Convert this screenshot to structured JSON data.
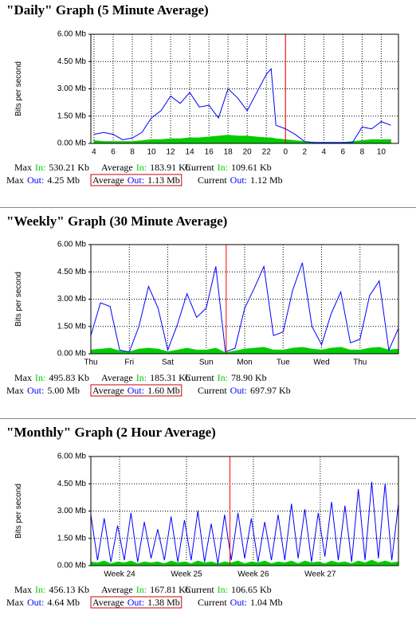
{
  "chart_data": [
    {
      "type": "line",
      "title": "\"Daily\" Graph (5 Minute Average)",
      "y_label": "Bits per second",
      "ylim": [
        0,
        6
      ],
      "yticks": [
        {
          "value": 0,
          "label": "0.00 Mb"
        },
        {
          "value": 1.5,
          "label": "1.50 Mb"
        },
        {
          "value": 3,
          "label": "3.00 Mb"
        },
        {
          "value": 4.5,
          "label": "4.50 Mb"
        },
        {
          "value": 6,
          "label": "6.00 Mb"
        }
      ],
      "xlim": [
        3.67,
        35.8
      ],
      "xticks": [
        4,
        6,
        8,
        10,
        12,
        14,
        16,
        18,
        20,
        22,
        {
          "value": 24,
          "label": "0"
        },
        {
          "value": 26,
          "label": "2"
        },
        {
          "value": 28,
          "label": "4"
        },
        {
          "value": 30,
          "label": "6"
        },
        {
          "value": 32,
          "label": "8"
        },
        {
          "value": 34,
          "label": "10"
        }
      ],
      "grid": true,
      "marker_x": 24,
      "marker_color": "#ff0000",
      "x": [
        4,
        5,
        6,
        7,
        8,
        9,
        10,
        11,
        12,
        13,
        14,
        15,
        16,
        17,
        18,
        19,
        20,
        21,
        22,
        22.5,
        23,
        24,
        25,
        26,
        27,
        28,
        29,
        30,
        31,
        32,
        33,
        34,
        35
      ],
      "series": [
        {
          "color": "#00cc00",
          "fill": true,
          "values": [
            0.15,
            0.1,
            0.1,
            0.1,
            0.1,
            0.15,
            0.2,
            0.2,
            0.25,
            0.25,
            0.3,
            0.3,
            0.35,
            0.4,
            0.45,
            0.4,
            0.4,
            0.35,
            0.3,
            0.3,
            0.25,
            0.2,
            0.15,
            0.1,
            0.05,
            0.05,
            0.05,
            0.05,
            0.1,
            0.15,
            0.2,
            0.2,
            0.2
          ]
        },
        {
          "color": "#0000ff",
          "fill": false,
          "values": [
            0.5,
            0.6,
            0.5,
            0.2,
            0.3,
            0.6,
            1.4,
            1.8,
            2.6,
            2.2,
            2.8,
            2.0,
            2.1,
            1.4,
            3.0,
            2.5,
            1.8,
            2.8,
            3.8,
            4.1,
            1.0,
            0.8,
            0.5,
            0.1,
            0.05,
            0.05,
            0.05,
            0.05,
            0.05,
            0.9,
            0.8,
            1.2,
            1.0
          ]
        }
      ]
    },
    {
      "type": "line",
      "title": "\"Weekly\" Graph (30 Minute Average)",
      "y_label": "Bits per second",
      "ylim": [
        0,
        6
      ],
      "yticks": [
        {
          "value": 0,
          "label": "0.00 Mb"
        },
        {
          "value": 1.5,
          "label": "1.50 Mb"
        },
        {
          "value": 3,
          "label": "3.00 Mb"
        },
        {
          "value": 4.5,
          "label": "4.50 Mb"
        },
        {
          "value": 6,
          "label": "6.00 Mb"
        }
      ],
      "xlim": [
        0,
        8
      ],
      "xticks": [
        {
          "value": 0,
          "label": "Thu"
        },
        {
          "value": 1,
          "label": "Fri"
        },
        {
          "value": 2,
          "label": "Sat"
        },
        {
          "value": 3,
          "label": "Sun"
        },
        {
          "value": 4,
          "label": "Mon"
        },
        {
          "value": 5,
          "label": "Tue"
        },
        {
          "value": 6,
          "label": "Wed"
        },
        {
          "value": 7,
          "label": "Thu"
        }
      ],
      "grid": true,
      "marker_x": 3.52,
      "marker_color": "#ff0000",
      "x": [
        0,
        0.25,
        0.5,
        0.75,
        1,
        1.25,
        1.5,
        1.75,
        2,
        2.25,
        2.5,
        2.75,
        3,
        3.25,
        3.5,
        3.75,
        4,
        4.25,
        4.5,
        4.75,
        5,
        5.25,
        5.5,
        5.75,
        6,
        6.25,
        6.5,
        6.75,
        7,
        7.25,
        7.5,
        7.75,
        8
      ],
      "series": [
        {
          "color": "#00cc00",
          "fill": true,
          "values": [
            0.2,
            0.25,
            0.3,
            0.15,
            0.1,
            0.25,
            0.3,
            0.25,
            0.1,
            0.2,
            0.3,
            0.2,
            0.2,
            0.3,
            0.05,
            0.15,
            0.25,
            0.3,
            0.35,
            0.2,
            0.2,
            0.3,
            0.35,
            0.25,
            0.2,
            0.3,
            0.35,
            0.2,
            0.2,
            0.3,
            0.35,
            0.2,
            0.25
          ]
        },
        {
          "color": "#0000ff",
          "fill": false,
          "values": [
            1.0,
            2.8,
            2.6,
            0.2,
            0.1,
            1.5,
            3.7,
            2.5,
            0.2,
            1.6,
            3.3,
            2.0,
            2.5,
            4.8,
            0.1,
            0.3,
            2.5,
            3.6,
            4.8,
            1.0,
            1.2,
            3.5,
            5.0,
            1.5,
            0.5,
            2.2,
            3.4,
            0.6,
            0.8,
            3.2,
            4.0,
            0.2,
            1.4
          ]
        }
      ]
    },
    {
      "type": "line",
      "title": "\"Monthly\" Graph (2 Hour Average)",
      "y_label": "Bits per second",
      "ylim": [
        0,
        6
      ],
      "yticks": [
        {
          "value": 0,
          "label": "0.00 Mb"
        },
        {
          "value": 1.5,
          "label": "1.50 Mb"
        },
        {
          "value": 3,
          "label": "3.00 Mb"
        },
        {
          "value": 4.5,
          "label": "4.50 Mb"
        },
        {
          "value": 6,
          "label": "6.00 Mb"
        }
      ],
      "xlim": [
        23.3,
        27.9
      ],
      "xticks": [
        {
          "value": 23.73,
          "label": "Week 24"
        },
        {
          "value": 24.73,
          "label": "Week 25"
        },
        {
          "value": 25.73,
          "label": "Week 26"
        },
        {
          "value": 26.73,
          "label": "Week 27"
        }
      ],
      "grid": true,
      "marker_x": 25.38,
      "marker_color": "#ff0000",
      "x": [
        23.3,
        23.4,
        23.5,
        23.6,
        23.7,
        23.8,
        23.9,
        24.0,
        24.1,
        24.2,
        24.3,
        24.4,
        24.5,
        24.6,
        24.7,
        24.8,
        24.9,
        25.0,
        25.1,
        25.2,
        25.3,
        25.4,
        25.5,
        25.6,
        25.7,
        25.8,
        25.9,
        26.0,
        26.1,
        26.2,
        26.3,
        26.4,
        26.5,
        26.6,
        26.7,
        26.8,
        26.9,
        27.0,
        27.1,
        27.2,
        27.3,
        27.4,
        27.5,
        27.6,
        27.7,
        27.8,
        27.9
      ],
      "series": [
        {
          "color": "#00cc00",
          "fill": true,
          "values": [
            0.2,
            0.15,
            0.25,
            0.1,
            0.2,
            0.15,
            0.25,
            0.1,
            0.2,
            0.15,
            0.2,
            0.1,
            0.25,
            0.15,
            0.2,
            0.1,
            0.25,
            0.15,
            0.2,
            0.1,
            0.2,
            0.15,
            0.25,
            0.1,
            0.2,
            0.15,
            0.25,
            0.1,
            0.2,
            0.15,
            0.25,
            0.1,
            0.25,
            0.15,
            0.2,
            0.1,
            0.25,
            0.15,
            0.2,
            0.1,
            0.25,
            0.15,
            0.3,
            0.15,
            0.25,
            0.15,
            0.2
          ]
        },
        {
          "color": "#0000ff",
          "fill": false,
          "values": [
            2.8,
            0.3,
            2.6,
            0.2,
            2.2,
            0.3,
            2.9,
            0.2,
            2.4,
            0.4,
            2.0,
            0.3,
            2.7,
            0.2,
            2.5,
            0.3,
            3.0,
            0.2,
            2.3,
            0.1,
            2.8,
            0.3,
            2.9,
            0.4,
            2.6,
            0.2,
            2.4,
            0.3,
            2.8,
            0.3,
            3.4,
            0.4,
            3.1,
            0.2,
            2.9,
            0.5,
            3.5,
            0.3,
            3.3,
            0.2,
            4.2,
            0.3,
            4.6,
            0.4,
            4.5,
            0.3,
            3.4
          ]
        }
      ]
    }
  ],
  "stats": [
    [
      [
        {
          "label": "Max",
          "dir": "In:",
          "value": "530.21 Kb"
        },
        {
          "label": "Average",
          "dir": "In:",
          "value": "183.91 Kb"
        },
        {
          "label": "Current",
          "dir": "In:",
          "value": "109.61 Kb"
        }
      ],
      [
        {
          "label": "Max",
          "dir": "Out:",
          "value": "4.25 Mb"
        },
        {
          "label": "Average",
          "dir": "Out:",
          "value": "1.13 Mb",
          "boxed": true
        },
        {
          "label": "Current",
          "dir": "Out:",
          "value": "1.12 Mb"
        }
      ]
    ],
    [
      [
        {
          "label": "Max",
          "dir": "In:",
          "value": "495.83 Kb"
        },
        {
          "label": "Average",
          "dir": "In:",
          "value": "185.31 Kb"
        },
        {
          "label": "Current",
          "dir": "In:",
          "value": "78.90 Kb"
        }
      ],
      [
        {
          "label": "Max",
          "dir": "Out:",
          "value": "5.00 Mb"
        },
        {
          "label": "Average",
          "dir": "Out:",
          "value": "1.60 Mb",
          "boxed": true
        },
        {
          "label": "Current",
          "dir": "Out:",
          "value": "697.97 Kb"
        }
      ]
    ],
    [
      [
        {
          "label": "Max",
          "dir": "In:",
          "value": "456.13 Kb"
        },
        {
          "label": "Average",
          "dir": "In:",
          "value": "167.81 Kb"
        },
        {
          "label": "Current",
          "dir": "In:",
          "value": "106.65 Kb"
        }
      ],
      [
        {
          "label": "Max",
          "dir": "Out:",
          "value": "4.64 Mb"
        },
        {
          "label": "Average",
          "dir": "Out:",
          "value": "1.38 Mb",
          "boxed": true
        },
        {
          "label": "Current",
          "dir": "Out:",
          "value": "1.04 Mb"
        }
      ]
    ]
  ]
}
